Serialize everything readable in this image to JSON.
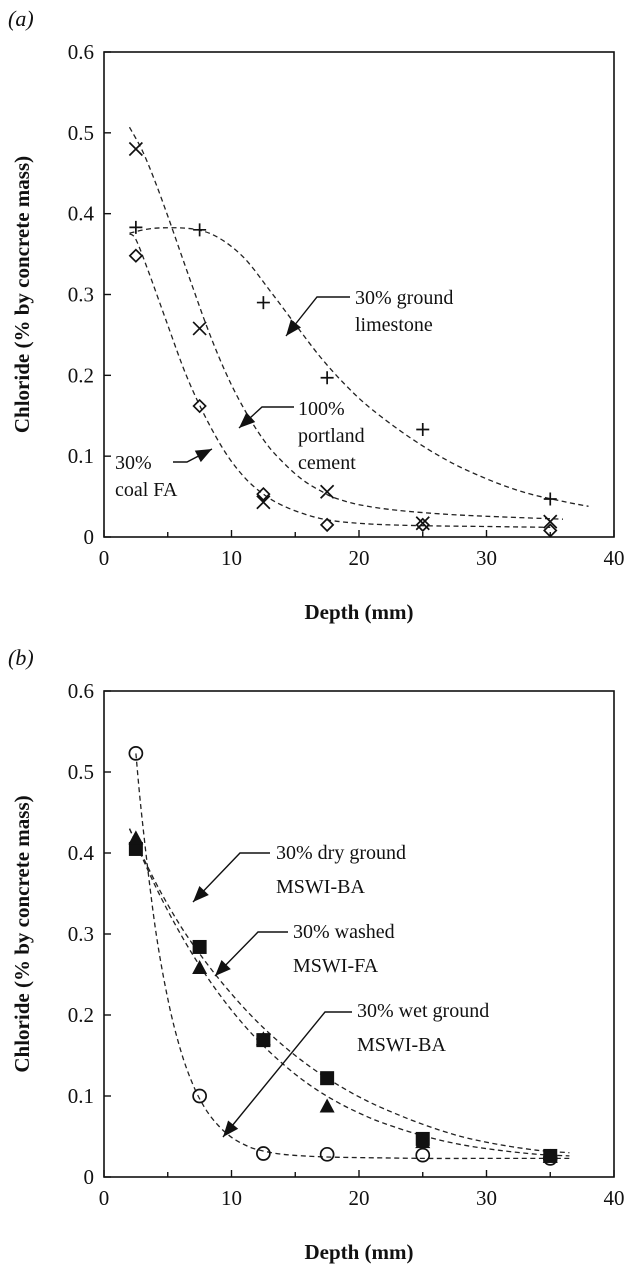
{
  "chart_data": [
    {
      "panel": "(a)",
      "type": "scatter",
      "xlabel": "Depth (mm)",
      "ylabel": "Chloride (% by concrete mass)",
      "xlim": [
        0,
        40
      ],
      "ylim": [
        0,
        0.6
      ],
      "xticks": [
        "0",
        "10",
        "20",
        "30",
        "40"
      ],
      "yticks": [
        "0",
        "0.1",
        "0.2",
        "0.3",
        "0.4",
        "0.5",
        "0.6"
      ],
      "grid": false,
      "series": [
        {
          "marker": "plus",
          "x": [
            2.5,
            7.5,
            12.5,
            17.5,
            25,
            35
          ],
          "y": [
            0.383,
            0.38,
            0.29,
            0.197,
            0.133,
            0.047
          ]
        },
        {
          "marker": "x",
          "x": [
            2.5,
            7.5,
            12.5,
            17.5,
            25,
            35
          ],
          "y": [
            0.48,
            0.258,
            0.043,
            0.056,
            0.017,
            0.019
          ]
        },
        {
          "marker": "diamond",
          "x": [
            2.5,
            7.5,
            12.5,
            17.5,
            25,
            35
          ],
          "y": [
            0.348,
            0.162,
            0.053,
            0.015,
            0.015,
            0.008
          ]
        }
      ],
      "fit_curves": [
        {
          "x": [
            2,
            4,
            7,
            9,
            11,
            13,
            15,
            17,
            19,
            21,
            24,
            27,
            30,
            33,
            36,
            38
          ],
          "y": [
            0.376,
            0.382,
            0.381,
            0.37,
            0.345,
            0.305,
            0.263,
            0.222,
            0.187,
            0.158,
            0.123,
            0.094,
            0.072,
            0.055,
            0.044,
            0.038
          ]
        },
        {
          "x": [
            2,
            3,
            4,
            5,
            6,
            7,
            8,
            9,
            10,
            11,
            12,
            13,
            14,
            15,
            16,
            17,
            18,
            20,
            23,
            27,
            31,
            36
          ],
          "y": [
            0.507,
            0.478,
            0.44,
            0.397,
            0.352,
            0.307,
            0.263,
            0.223,
            0.188,
            0.158,
            0.132,
            0.11,
            0.093,
            0.078,
            0.066,
            0.057,
            0.049,
            0.04,
            0.033,
            0.028,
            0.025,
            0.022
          ]
        },
        {
          "x": [
            2,
            2.5,
            3.5,
            5,
            6.5,
            8,
            9.5,
            11,
            12.5,
            14,
            16,
            18,
            21,
            25,
            30,
            35
          ],
          "y": [
            0.375,
            0.368,
            0.328,
            0.262,
            0.198,
            0.147,
            0.105,
            0.074,
            0.053,
            0.039,
            0.027,
            0.02,
            0.016,
            0.014,
            0.013,
            0.012
          ]
        }
      ],
      "annotations": [
        {
          "lines": [
            "30% ground",
            "limestone"
          ]
        },
        {
          "lines": [
            "100%",
            "portland",
            "cement"
          ]
        },
        {
          "lines": [
            "30%",
            "coal FA"
          ]
        }
      ]
    },
    {
      "panel": "(b)",
      "type": "scatter",
      "xlabel": "Depth (mm)",
      "ylabel": "Chloride (% by concrete mass)",
      "xlim": [
        0,
        40
      ],
      "ylim": [
        0,
        0.6
      ],
      "xticks": [
        "0",
        "10",
        "20",
        "30",
        "40"
      ],
      "yticks": [
        "0",
        "0.1",
        "0.2",
        "0.3",
        "0.4",
        "0.5",
        "0.6"
      ],
      "grid": false,
      "series": [
        {
          "marker": "square",
          "x": [
            2.5,
            7.5,
            12.5,
            17.5,
            25,
            35
          ],
          "y": [
            0.405,
            0.284,
            0.169,
            0.122,
            0.047,
            0.026
          ]
        },
        {
          "marker": "triangle",
          "x": [
            2.5,
            7.5,
            12.5,
            17.5,
            25,
            35
          ],
          "y": [
            0.418,
            0.258,
            0.17,
            0.087,
            0.043,
            0.025
          ]
        },
        {
          "marker": "circle",
          "x": [
            2.5,
            7.5,
            12.5,
            17.5,
            25,
            35
          ],
          "y": [
            0.523,
            0.1,
            0.029,
            0.028,
            0.027,
            0.023
          ]
        }
      ],
      "fit_curves": [
        {
          "x": [
            2,
            4,
            6,
            8,
            10,
            12,
            14,
            16,
            18,
            20,
            22,
            25,
            28,
            31,
            34,
            36.5
          ],
          "y": [
            0.43,
            0.365,
            0.31,
            0.265,
            0.226,
            0.192,
            0.163,
            0.138,
            0.117,
            0.099,
            0.084,
            0.065,
            0.05,
            0.04,
            0.033,
            0.03
          ]
        },
        {
          "x": [
            2,
            4,
            6,
            8,
            10,
            12,
            14,
            16,
            18,
            20,
            22,
            25,
            28,
            31,
            34,
            36.5
          ],
          "y": [
            0.43,
            0.36,
            0.3,
            0.249,
            0.206,
            0.17,
            0.14,
            0.115,
            0.095,
            0.079,
            0.066,
            0.051,
            0.04,
            0.033,
            0.028,
            0.026
          ]
        },
        {
          "x": [
            2.5,
            3,
            4,
            5,
            6,
            7,
            8,
            9,
            10,
            11,
            12,
            14,
            17,
            20,
            25,
            30,
            36.5
          ],
          "y": [
            0.523,
            0.44,
            0.31,
            0.22,
            0.157,
            0.113,
            0.083,
            0.063,
            0.049,
            0.04,
            0.034,
            0.028,
            0.025,
            0.024,
            0.023,
            0.023,
            0.023
          ]
        }
      ],
      "annotations": [
        {
          "lines": [
            "30% dry ground",
            "MSWI-BA"
          ]
        },
        {
          "lines": [
            "30% washed",
            "MSWI-FA"
          ]
        },
        {
          "lines": [
            "30% wet ground",
            "MSWI-BA"
          ]
        }
      ]
    }
  ]
}
